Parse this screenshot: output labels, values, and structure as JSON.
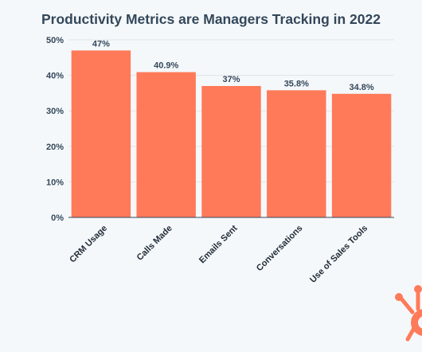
{
  "chart_data": {
    "type": "bar",
    "title": "Productivity Metrics are Managers Tracking in 2022",
    "categories": [
      "CRM Usage",
      "Calls Made",
      "Emails Sent",
      "Conversations",
      "Use of Sales Tools"
    ],
    "values": [
      47,
      40.9,
      37,
      35.8,
      34.8
    ],
    "value_labels": [
      "47%",
      "40.9%",
      "37%",
      "35.8%",
      "34.8%"
    ],
    "ylim": [
      0,
      50
    ],
    "yticks": [
      0,
      10,
      20,
      30,
      40,
      50
    ],
    "ytick_labels": [
      "0%",
      "10%",
      "20%",
      "30%",
      "40%",
      "50%"
    ],
    "grid": true,
    "bar_color": "#ff7a59",
    "xlabel": "",
    "ylabel": ""
  },
  "logo": {
    "icon": "sprocket-icon",
    "color": "#ff7a59"
  }
}
